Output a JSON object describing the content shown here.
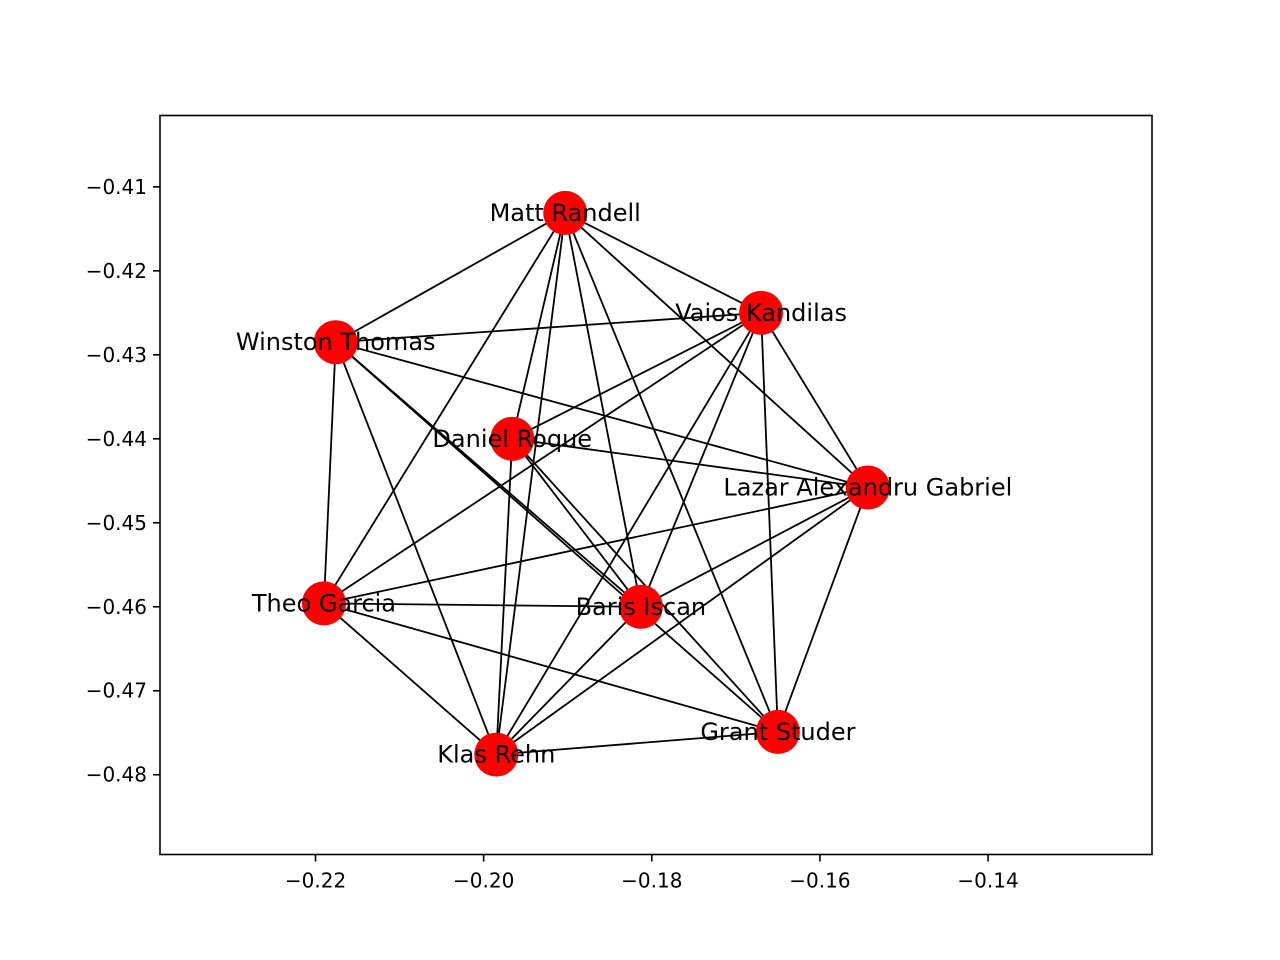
{
  "chart_data": {
    "type": "network",
    "title": "",
    "xlabel": "",
    "ylabel": "",
    "xlim": [
      -0.2385,
      -0.1205
    ],
    "ylim": [
      -0.4895,
      -0.4015
    ],
    "x_ticks": [
      -0.22,
      -0.2,
      -0.18,
      -0.16,
      -0.14
    ],
    "x_tick_labels": [
      "−0.22",
      "−0.20",
      "−0.18",
      "−0.16",
      "−0.14"
    ],
    "y_ticks": [
      -0.41,
      -0.42,
      -0.43,
      -0.44,
      -0.45,
      -0.46,
      -0.47,
      -0.48
    ],
    "y_tick_labels": [
      "−0.41",
      "−0.42",
      "−0.43",
      "−0.44",
      "−0.45",
      "−0.46",
      "−0.47",
      "−0.48"
    ],
    "grid": false,
    "node_color": "#ff0000",
    "edge_color": "#000000",
    "nodes": [
      {
        "id": "Matt Randell",
        "x": -0.1903,
        "y": -0.4131
      },
      {
        "id": "Vaios Kandilas",
        "x": -0.167,
        "y": -0.425
      },
      {
        "id": "Winston Thomas",
        "x": -0.2176,
        "y": -0.4285
      },
      {
        "id": "Daniel Roque",
        "x": -0.1966,
        "y": -0.44
      },
      {
        "id": "Lazar Alexandru Gabriel",
        "x": -0.1543,
        "y": -0.4458
      },
      {
        "id": "Theo Garcia",
        "x": -0.219,
        "y": -0.4596
      },
      {
        "id": "Baris Iscan",
        "x": -0.1813,
        "y": -0.46
      },
      {
        "id": "Grant Studer",
        "x": -0.165,
        "y": -0.4749
      },
      {
        "id": "Klas Rehn",
        "x": -0.1985,
        "y": -0.4776
      }
    ],
    "edges": [
      [
        "Matt Randell",
        "Winston Thomas"
      ],
      [
        "Matt Randell",
        "Vaios Kandilas"
      ],
      [
        "Matt Randell",
        "Daniel Roque"
      ],
      [
        "Matt Randell",
        "Lazar Alexandru Gabriel"
      ],
      [
        "Matt Randell",
        "Theo Garcia"
      ],
      [
        "Matt Randell",
        "Baris Iscan"
      ],
      [
        "Matt Randell",
        "Grant Studer"
      ],
      [
        "Matt Randell",
        "Klas Rehn"
      ],
      [
        "Vaios Kandilas",
        "Winston Thomas"
      ],
      [
        "Vaios Kandilas",
        "Daniel Roque"
      ],
      [
        "Vaios Kandilas",
        "Lazar Alexandru Gabriel"
      ],
      [
        "Vaios Kandilas",
        "Theo Garcia"
      ],
      [
        "Vaios Kandilas",
        "Baris Iscan"
      ],
      [
        "Vaios Kandilas",
        "Grant Studer"
      ],
      [
        "Vaios Kandilas",
        "Klas Rehn"
      ],
      [
        "Winston Thomas",
        "Lazar Alexandru Gabriel"
      ],
      [
        "Winston Thomas",
        "Theo Garcia"
      ],
      [
        "Winston Thomas",
        "Baris Iscan"
      ],
      [
        "Winston Thomas",
        "Grant Studer"
      ],
      [
        "Winston Thomas",
        "Klas Rehn"
      ],
      [
        "Daniel Roque",
        "Lazar Alexandru Gabriel"
      ],
      [
        "Daniel Roque",
        "Baris Iscan"
      ],
      [
        "Daniel Roque",
        "Grant Studer"
      ],
      [
        "Daniel Roque",
        "Klas Rehn"
      ],
      [
        "Lazar Alexandru Gabriel",
        "Theo Garcia"
      ],
      [
        "Lazar Alexandru Gabriel",
        "Baris Iscan"
      ],
      [
        "Lazar Alexandru Gabriel",
        "Grant Studer"
      ],
      [
        "Lazar Alexandru Gabriel",
        "Klas Rehn"
      ],
      [
        "Theo Garcia",
        "Baris Iscan"
      ],
      [
        "Theo Garcia",
        "Grant Studer"
      ],
      [
        "Theo Garcia",
        "Klas Rehn"
      ],
      [
        "Baris Iscan",
        "Klas Rehn"
      ],
      [
        "Grant Studer",
        "Klas Rehn"
      ]
    ]
  }
}
